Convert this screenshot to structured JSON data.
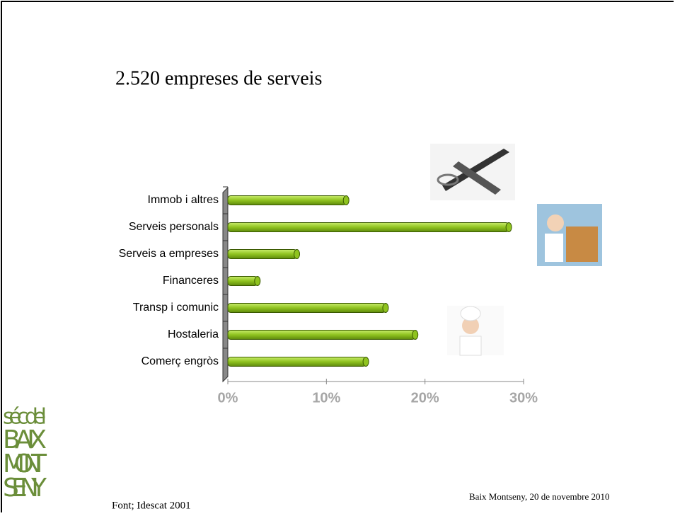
{
  "chart_data": {
    "type": "bar",
    "orientation": "horizontal",
    "title": "2.520 empreses de serveis",
    "categories": [
      "Immob i altres",
      "Serveis personals",
      "Serveis a empreses",
      "Financeres",
      "Transp i comunic",
      "Hostaleria",
      "Comerç engròs"
    ],
    "values": [
      12,
      28.5,
      7,
      3,
      16,
      19,
      14
    ],
    "color": "#8fc31f",
    "xlim": [
      0,
      30
    ],
    "xticks": [
      {
        "value": 0,
        "label": "0%"
      },
      {
        "value": 10,
        "label": "10%"
      },
      {
        "value": 20,
        "label": "20%"
      },
      {
        "value": 30,
        "label": "30%"
      }
    ]
  },
  "logo": [
    "séc del",
    "BAIX",
    "MONT",
    "SENY"
  ],
  "footer": {
    "source": "Font; Idescat 2001",
    "date": "Baix Montseny, 20 de novembre 2010"
  }
}
